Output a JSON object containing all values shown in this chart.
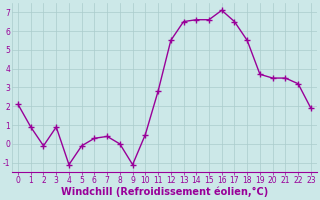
{
  "x": [
    0,
    1,
    2,
    3,
    4,
    5,
    6,
    7,
    8,
    9,
    10,
    11,
    12,
    13,
    14,
    15,
    16,
    17,
    18,
    19,
    20,
    21,
    22,
    23
  ],
  "y": [
    2.1,
    0.9,
    -0.1,
    0.9,
    -1.1,
    -0.1,
    0.3,
    0.4,
    0.0,
    -1.1,
    0.5,
    2.8,
    5.5,
    6.5,
    6.6,
    6.6,
    7.1,
    6.5,
    5.5,
    3.7,
    3.5,
    3.5,
    3.2,
    1.9
  ],
  "line_color": "#990099",
  "marker": "+",
  "marker_size": 4,
  "marker_lw": 1.0,
  "bg_color": "#cce8e8",
  "grid_color": "#aacccc",
  "ylim": [
    -1.5,
    7.5
  ],
  "xlim": [
    -0.5,
    23.5
  ],
  "yticks": [
    -1,
    0,
    1,
    2,
    3,
    4,
    5,
    6,
    7
  ],
  "xticks": [
    0,
    1,
    2,
    3,
    4,
    5,
    6,
    7,
    8,
    9,
    10,
    11,
    12,
    13,
    14,
    15,
    16,
    17,
    18,
    19,
    20,
    21,
    22,
    23
  ],
  "tick_color": "#990099",
  "label_color": "#990099",
  "tick_fontsize": 5.5,
  "xlabel": "Windchill (Refroidissement éolien,°C)",
  "xlabel_fontsize": 7,
  "line_width": 1.0,
  "spine_color": "#990099"
}
